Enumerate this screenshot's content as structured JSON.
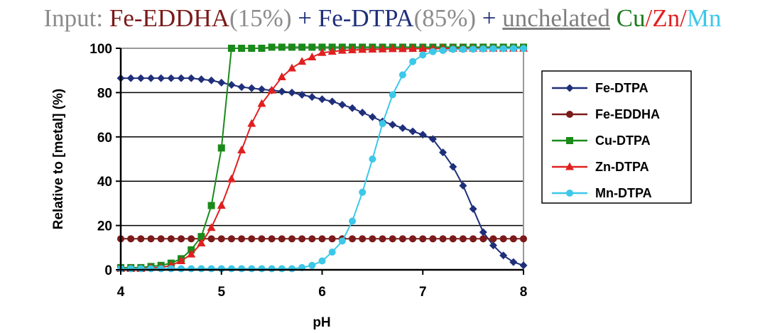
{
  "title": {
    "prefix": "Input: ",
    "part1": "Fe-EDDHA",
    "part1_pct": "(15%)",
    "plus1": " + ",
    "part2": "Fe-DTPA",
    "part2_pct": "(85%)",
    "plus2": " + ",
    "part3": "unchelated",
    "sp": " ",
    "cu": "Cu",
    "slash1": "/",
    "zn": "Zn",
    "slash2": "/",
    "mn": "Mn"
  },
  "colors": {
    "prefix": "#8c8c8c",
    "fe_eddha": "#7b1a1a",
    "fe_dtpa": "#1f2f7a",
    "unchelated": "#7f7f7f",
    "cu": "#1a7a1a",
    "zn": "#e02020",
    "mn": "#3cc8e8"
  },
  "chart_data": {
    "type": "line",
    "xlabel": "pH",
    "ylabel": "Relative to [metal] (%)",
    "xlim": [
      4,
      8
    ],
    "ylim": [
      0,
      100
    ],
    "xticks": [
      "4",
      "5",
      "6",
      "7",
      "8"
    ],
    "yticks": [
      "0",
      "20",
      "40",
      "60",
      "80",
      "100"
    ],
    "grid": "horizontal",
    "legend_position": "right",
    "series": [
      {
        "name": "Fe-DTPA",
        "color": "#1f2f7a",
        "marker": "diamond",
        "x": [
          4.0,
          4.1,
          4.2,
          4.3,
          4.4,
          4.5,
          4.6,
          4.7,
          4.8,
          4.9,
          5.0,
          5.1,
          5.2,
          5.3,
          5.4,
          5.5,
          5.6,
          5.7,
          5.8,
          5.9,
          6.0,
          6.1,
          6.2,
          6.3,
          6.4,
          6.5,
          6.6,
          6.7,
          6.8,
          6.9,
          7.0,
          7.1,
          7.2,
          7.3,
          7.4,
          7.5,
          7.6,
          7.7,
          7.8,
          7.9,
          8.0
        ],
        "y": [
          86.5,
          86.5,
          86.5,
          86.5,
          86.5,
          86.5,
          86.5,
          86.5,
          86.0,
          85.5,
          84.5,
          83.5,
          82.5,
          82.0,
          81.5,
          81.0,
          80.5,
          80.0,
          79.0,
          78.0,
          77.0,
          76.0,
          74.5,
          73.0,
          71.0,
          69.0,
          67.0,
          65.5,
          64.0,
          62.5,
          61.0,
          59.0,
          53.0,
          46.5,
          38.0,
          27.5,
          17.0,
          11.0,
          6.5,
          3.5,
          2.0
        ]
      },
      {
        "name": "Fe-EDDHA",
        "color": "#7b1a1a",
        "marker": "circle",
        "x": [
          4.0,
          4.1,
          4.2,
          4.3,
          4.4,
          4.5,
          4.6,
          4.7,
          4.8,
          4.9,
          5.0,
          5.1,
          5.2,
          5.3,
          5.4,
          5.5,
          5.6,
          5.7,
          5.8,
          5.9,
          6.0,
          6.1,
          6.2,
          6.3,
          6.4,
          6.5,
          6.6,
          6.7,
          6.8,
          6.9,
          7.0,
          7.1,
          7.2,
          7.3,
          7.4,
          7.5,
          7.6,
          7.7,
          7.8,
          7.9,
          8.0
        ],
        "y": [
          14,
          14,
          14,
          14,
          14,
          14,
          14,
          14,
          14,
          14,
          14,
          14,
          14,
          14,
          14,
          14,
          14,
          14,
          14,
          14,
          14,
          14,
          14,
          14,
          14,
          14,
          14,
          14,
          14,
          14,
          14,
          14,
          14,
          14,
          14,
          14,
          14,
          14,
          14,
          14,
          14
        ]
      },
      {
        "name": "Cu-DTPA",
        "color": "#1a8a1a",
        "marker": "square",
        "x": [
          4.0,
          4.1,
          4.2,
          4.3,
          4.4,
          4.5,
          4.6,
          4.7,
          4.8,
          4.9,
          5.0,
          5.1,
          5.2,
          5.3,
          5.4,
          5.5,
          5.6,
          5.7,
          5.8,
          5.9,
          6.0,
          6.1,
          6.2,
          6.3,
          6.4,
          6.5,
          6.6,
          6.7,
          6.8,
          6.9,
          7.0,
          7.1,
          7.2,
          7.3,
          7.4,
          7.5,
          7.6,
          7.7,
          7.8,
          7.9,
          8.0
        ],
        "y": [
          1,
          1,
          1,
          1.5,
          2,
          3,
          5,
          9,
          15,
          29,
          55,
          100,
          100,
          100,
          100,
          100.5,
          100.5,
          100.5,
          100.5,
          100.5,
          100.5,
          100.5,
          100.5,
          100.5,
          100.5,
          100.5,
          100.5,
          100.5,
          100.5,
          100.5,
          100.5,
          100.5,
          100.5,
          100.5,
          100.5,
          100.5,
          100.5,
          100.5,
          100.5,
          100.5,
          100.5
        ]
      },
      {
        "name": "Zn-DTPA",
        "color": "#e02020",
        "marker": "triangle",
        "x": [
          4.0,
          4.1,
          4.2,
          4.3,
          4.4,
          4.5,
          4.6,
          4.7,
          4.8,
          4.9,
          5.0,
          5.1,
          5.2,
          5.3,
          5.4,
          5.5,
          5.6,
          5.7,
          5.8,
          5.9,
          6.0,
          6.1,
          6.2,
          6.3,
          6.4,
          6.5,
          6.6,
          6.7,
          6.8,
          6.9,
          7.0,
          7.1,
          7.2,
          7.3,
          7.4,
          7.5,
          7.6,
          7.7,
          7.8,
          7.9,
          8.0
        ],
        "y": [
          0.5,
          0.5,
          0.5,
          1,
          1,
          2,
          4,
          7,
          12,
          19,
          29,
          41,
          54,
          66,
          75,
          81,
          87,
          91,
          94,
          96,
          98,
          98.5,
          99,
          99.2,
          99.4,
          99.5,
          99.6,
          99.7,
          99.7,
          99.8,
          99.8,
          99.8,
          99.9,
          99.9,
          99.9,
          99.9,
          99.9,
          99.9,
          99.9,
          99.9,
          99.9
        ]
      },
      {
        "name": "Mn-DTPA",
        "color": "#3cc8e8",
        "marker": "circle",
        "x": [
          4.0,
          4.1,
          4.2,
          4.3,
          4.4,
          4.5,
          4.6,
          4.7,
          4.8,
          4.9,
          5.0,
          5.1,
          5.2,
          5.3,
          5.4,
          5.5,
          5.6,
          5.7,
          5.8,
          5.9,
          6.0,
          6.1,
          6.2,
          6.3,
          6.4,
          6.5,
          6.6,
          6.7,
          6.8,
          6.9,
          7.0,
          7.1,
          7.2,
          7.3,
          7.4,
          7.5,
          7.6,
          7.7,
          7.8,
          7.9,
          8.0
        ],
        "y": [
          0.5,
          0.5,
          0.5,
          0.5,
          0.5,
          0.5,
          0.5,
          0.5,
          0.5,
          0.5,
          0.5,
          0.5,
          0.5,
          0.5,
          0.5,
          0.5,
          0.5,
          0.5,
          1,
          2,
          4,
          8,
          13,
          22,
          35,
          50,
          66,
          79,
          88,
          94,
          97,
          98.5,
          99,
          99.5,
          99.5,
          99.6,
          99.7,
          99.8,
          99.8,
          99.9,
          99.9
        ]
      }
    ]
  }
}
